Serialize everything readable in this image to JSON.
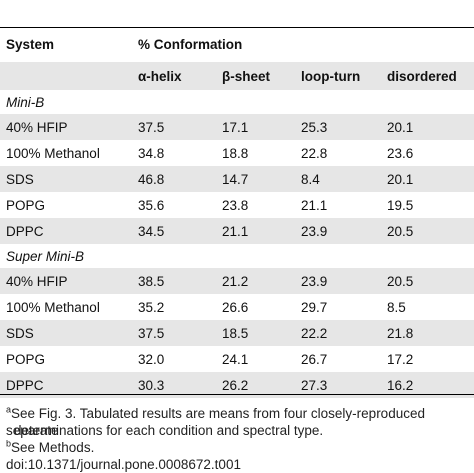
{
  "header": {
    "col0": "System",
    "col_group": "% Conformation"
  },
  "subheaders": [
    "α-helix",
    "β-sheet",
    "loop-turn",
    "disordered"
  ],
  "groups": [
    {
      "name": "Mini-B",
      "rows": [
        {
          "system": "40% HFIP",
          "values": [
            "37.5",
            "17.1",
            "25.3",
            "20.1"
          ]
        },
        {
          "system": "100% Methanol",
          "values": [
            "34.8",
            "18.8",
            "22.8",
            "23.6"
          ]
        },
        {
          "system": "SDS",
          "values": [
            "46.8",
            "14.7",
            "8.4",
            "20.1"
          ]
        },
        {
          "system": "POPG",
          "values": [
            "35.6",
            "23.8",
            "21.1",
            "19.5"
          ]
        },
        {
          "system": "DPPC",
          "values": [
            "34.5",
            "21.1",
            "23.9",
            "20.5"
          ]
        }
      ]
    },
    {
      "name": "Super Mini-B",
      "rows": [
        {
          "system": "40% HFIP",
          "values": [
            "38.5",
            "21.2",
            "23.9",
            "20.5"
          ]
        },
        {
          "system": "100% Methanol",
          "values": [
            "35.2",
            "26.6",
            "29.7",
            "8.5"
          ]
        },
        {
          "system": "SDS",
          "values": [
            "37.5",
            "18.5",
            "22.2",
            "21.8"
          ]
        },
        {
          "system": "POPG",
          "values": [
            "32.0",
            "24.1",
            "26.7",
            "17.2"
          ]
        },
        {
          "system": "DPPC",
          "values": [
            "30.3",
            "26.2",
            "27.3",
            "16.2"
          ]
        }
      ]
    }
  ],
  "footnotes": {
    "a_mark": "a",
    "a_text": "See Fig. 3. Tabulated results are means from four closely-reproduced separate",
    "a_text_cont": "determinations for each condition and spectral type.",
    "b_mark": "b",
    "b_text": "See Methods.",
    "doi": "doi:10.1371/journal.pone.0008672.t001"
  }
}
